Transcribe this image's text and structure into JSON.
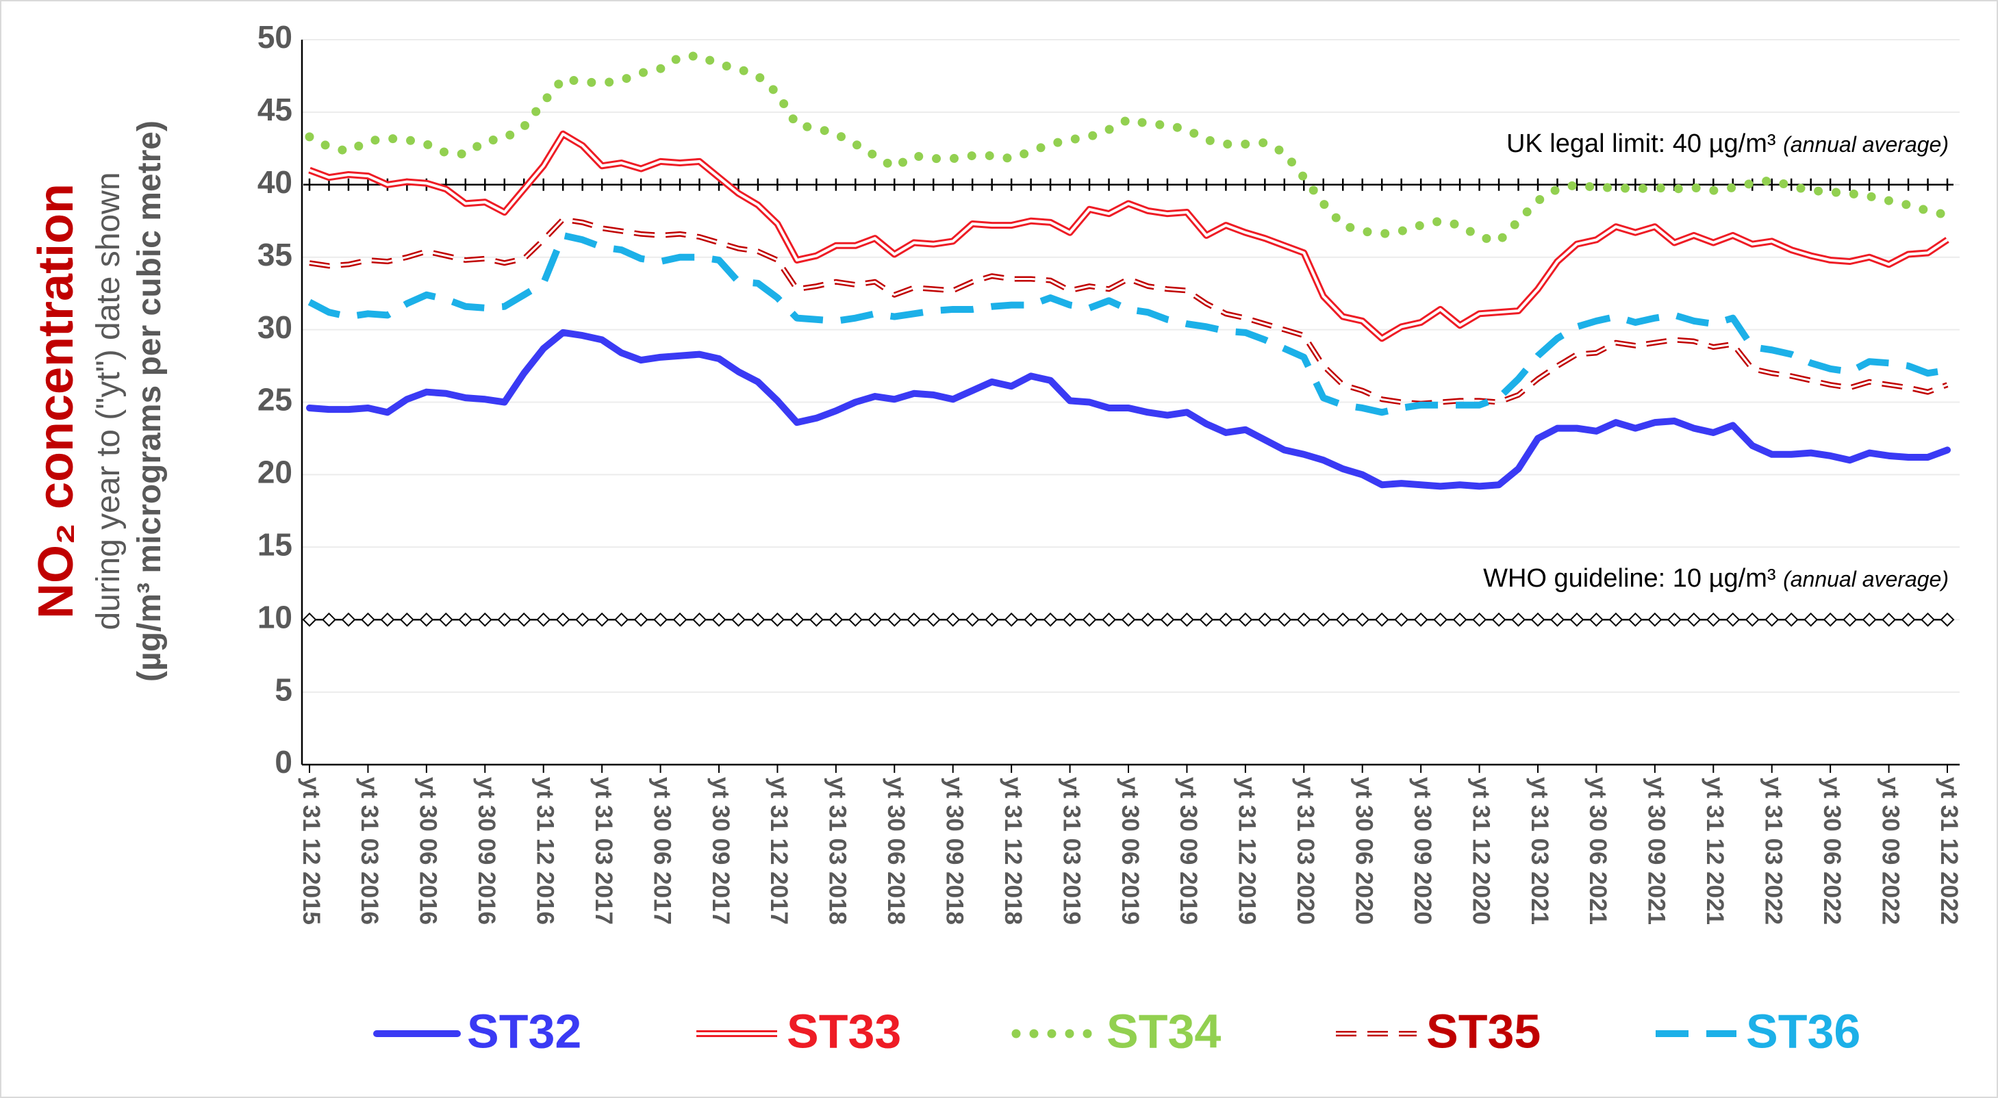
{
  "chart_data": {
    "type": "line",
    "ylabel": {
      "main": "NO₂ concentration",
      "line1": "during year to (\"yt\") date shown",
      "line2": "(µg/m³ micrograms per cubic metre)"
    },
    "ylim": [
      0,
      50
    ],
    "yticks": [
      0,
      5,
      10,
      15,
      20,
      25,
      30,
      35,
      40,
      45,
      50
    ],
    "grid": true,
    "legend": "bottom",
    "categories": [
      "yt 31 12 2015",
      null,
      null,
      "yt 31 03 2016",
      null,
      null,
      "yt 30 06 2016",
      null,
      null,
      "yt 30 09 2016",
      null,
      null,
      "yt 31 12 2016",
      null,
      null,
      "yt 31 03 2017",
      null,
      null,
      "yt 30 06 2017",
      null,
      null,
      "yt 30 09 2017",
      null,
      null,
      "yt 31 12 2017",
      null,
      null,
      "yt 31 03 2018",
      null,
      null,
      "yt 30 06 2018",
      null,
      null,
      "yt 30 09 2018",
      null,
      null,
      "yt 31 12 2018",
      null,
      null,
      "yt 31 03 2019",
      null,
      null,
      "yt 30 06 2019",
      null,
      null,
      "yt 30 09 2019",
      null,
      null,
      "yt 31 12 2019",
      null,
      null,
      "yt 31 03 2020",
      null,
      null,
      "yt 30 06 2020",
      null,
      null,
      "yt 30 09 2020",
      null,
      null,
      "yt 31 12 2020",
      null,
      null,
      "yt 31 03 2021",
      null,
      null,
      "yt 30 06 2021",
      null,
      null,
      "yt 30 09 2021",
      null,
      null,
      "yt 31 12 2021",
      null,
      null,
      "yt 31 03 2022",
      null,
      null,
      "yt 30 06 2022",
      null,
      null,
      "yt 30 09 2022",
      null,
      null,
      "yt 31 12 2022"
    ],
    "reference_lines": [
      {
        "value": 40,
        "marker": "plus",
        "label": "UK legal limit:  40 µg/m³ ",
        "note": "(annual average)"
      },
      {
        "value": 10,
        "marker": "diamond",
        "label": "WHO guideline:  10 µg/m³ ",
        "note": "(annual average)"
      }
    ],
    "series": [
      {
        "name": "ST32",
        "color": "#3a3af4",
        "style": "solid",
        "values": [
          24.6,
          24.5,
          24.5,
          24.6,
          24.3,
          25.2,
          25.7,
          25.6,
          25.3,
          25.2,
          25.0,
          27.0,
          28.7,
          29.8,
          29.6,
          29.3,
          28.4,
          27.9,
          28.1,
          28.2,
          28.3,
          28.0,
          27.1,
          26.4,
          25.1,
          23.6,
          23.9,
          24.4,
          25.0,
          25.4,
          25.2,
          25.6,
          25.5,
          25.2,
          25.8,
          26.4,
          26.1,
          26.8,
          26.5,
          25.1,
          25.0,
          24.6,
          24.6,
          24.3,
          24.1,
          24.3,
          23.5,
          22.9,
          23.1,
          22.4,
          21.7,
          21.4,
          21.0,
          20.4,
          20.0,
          19.3,
          19.4,
          19.3,
          19.2,
          19.3,
          19.2,
          19.3,
          20.4,
          22.5,
          23.2,
          23.2,
          23.0,
          23.6,
          23.2,
          23.6,
          23.7,
          23.2,
          22.9,
          23.4,
          22.0,
          21.4,
          21.4,
          21.5,
          21.3,
          21.0,
          21.5,
          21.3,
          21.2,
          21.2,
          21.7
        ]
      },
      {
        "name": "ST33",
        "color": "#ee1c25",
        "style": "double",
        "values": [
          41.0,
          40.5,
          40.7,
          40.6,
          40.0,
          40.2,
          40.1,
          39.7,
          38.7,
          38.8,
          38.1,
          39.7,
          41.3,
          43.5,
          42.7,
          41.3,
          41.5,
          41.1,
          41.6,
          41.5,
          41.6,
          40.5,
          39.4,
          38.6,
          37.3,
          34.8,
          35.1,
          35.8,
          35.8,
          36.3,
          35.2,
          36.0,
          35.9,
          36.1,
          37.3,
          37.2,
          37.2,
          37.5,
          37.4,
          36.7,
          38.3,
          38.0,
          38.7,
          38.2,
          38.0,
          38.1,
          36.5,
          37.2,
          36.7,
          36.3,
          35.8,
          35.3,
          32.3,
          30.9,
          30.6,
          29.4,
          30.2,
          30.5,
          31.4,
          30.3,
          31.1,
          31.2,
          31.3,
          32.8,
          34.7,
          35.9,
          36.2,
          37.1,
          36.7,
          37.1,
          36.0,
          36.5,
          36.0,
          36.5,
          35.9,
          36.1,
          35.5,
          35.1,
          34.8,
          34.7,
          35.0,
          34.5,
          35.2,
          35.3,
          36.2
        ]
      },
      {
        "name": "ST34",
        "color": "#92d050",
        "style": "dotted",
        "values": [
          43.3,
          42.6,
          42.3,
          43.0,
          43.2,
          43.1,
          42.8,
          42.2,
          42.1,
          43.0,
          43.2,
          44.0,
          45.7,
          47.3,
          47.1,
          47.0,
          47.2,
          47.7,
          48.0,
          48.8,
          48.9,
          48.3,
          48.0,
          47.5,
          46.3,
          44.1,
          43.9,
          43.5,
          42.8,
          42.0,
          41.2,
          42.0,
          41.8,
          41.8,
          42.0,
          42.0,
          41.8,
          42.3,
          42.8,
          43.1,
          43.3,
          43.8,
          44.5,
          44.2,
          44.1,
          43.8,
          43.1,
          42.8,
          42.8,
          42.9,
          42.2,
          40.5,
          38.7,
          37.2,
          36.8,
          36.6,
          36.8,
          37.2,
          37.5,
          37.2,
          36.4,
          36.1,
          37.5,
          38.9,
          39.7,
          40.0,
          39.8,
          39.8,
          39.7,
          39.8,
          39.7,
          39.8,
          39.6,
          39.8,
          40.1,
          40.3,
          39.9,
          39.6,
          39.5,
          39.4,
          39.2,
          38.9,
          38.6,
          38.2,
          37.9
        ]
      },
      {
        "name": "ST35",
        "color": "#c00000",
        "style": "double-dashed",
        "values": [
          34.6,
          34.4,
          34.5,
          34.8,
          34.7,
          35.0,
          35.4,
          35.1,
          34.8,
          34.9,
          34.6,
          34.9,
          36.2,
          37.6,
          37.4,
          37.0,
          36.8,
          36.6,
          36.5,
          36.6,
          36.4,
          36.0,
          35.6,
          35.4,
          34.8,
          32.8,
          33.0,
          33.3,
          33.1,
          33.3,
          32.4,
          32.9,
          32.8,
          32.7,
          33.3,
          33.7,
          33.5,
          33.5,
          33.4,
          32.7,
          33.0,
          32.8,
          33.5,
          33.0,
          32.8,
          32.7,
          31.8,
          31.1,
          30.8,
          30.4,
          30.0,
          29.6,
          27.5,
          26.2,
          25.8,
          25.2,
          25.0,
          24.9,
          25.0,
          25.1,
          25.1,
          25.0,
          25.5,
          26.6,
          27.5,
          28.3,
          28.4,
          29.1,
          28.9,
          29.1,
          29.3,
          29.2,
          28.8,
          29.0,
          27.3,
          27.0,
          26.8,
          26.5,
          26.2,
          26.0,
          26.4,
          26.2,
          26.0,
          25.7,
          26.2
        ]
      },
      {
        "name": "ST36",
        "color": "#1cb0e8",
        "style": "dashed",
        "values": [
          31.9,
          31.2,
          30.9,
          31.1,
          31.0,
          31.8,
          32.4,
          32.1,
          31.6,
          31.5,
          31.6,
          32.4,
          33.2,
          36.5,
          36.2,
          35.7,
          35.5,
          34.9,
          34.7,
          35.0,
          35.0,
          34.8,
          33.3,
          33.2,
          32.2,
          30.8,
          30.7,
          30.6,
          30.8,
          31.1,
          30.9,
          31.1,
          31.3,
          31.4,
          31.4,
          31.6,
          31.7,
          31.7,
          32.2,
          31.7,
          31.5,
          32.0,
          31.4,
          31.2,
          30.7,
          30.4,
          30.2,
          29.9,
          29.8,
          29.3,
          28.7,
          28.1,
          25.3,
          24.8,
          24.6,
          24.3,
          24.6,
          24.8,
          24.8,
          24.8,
          24.8,
          25.3,
          26.6,
          28.2,
          29.4,
          30.2,
          30.6,
          30.9,
          30.5,
          30.8,
          31.0,
          30.6,
          30.4,
          30.8,
          28.8,
          28.6,
          28.3,
          27.7,
          27.3,
          27.1,
          27.8,
          27.7,
          27.5,
          27.0,
          27.2
        ]
      }
    ]
  }
}
